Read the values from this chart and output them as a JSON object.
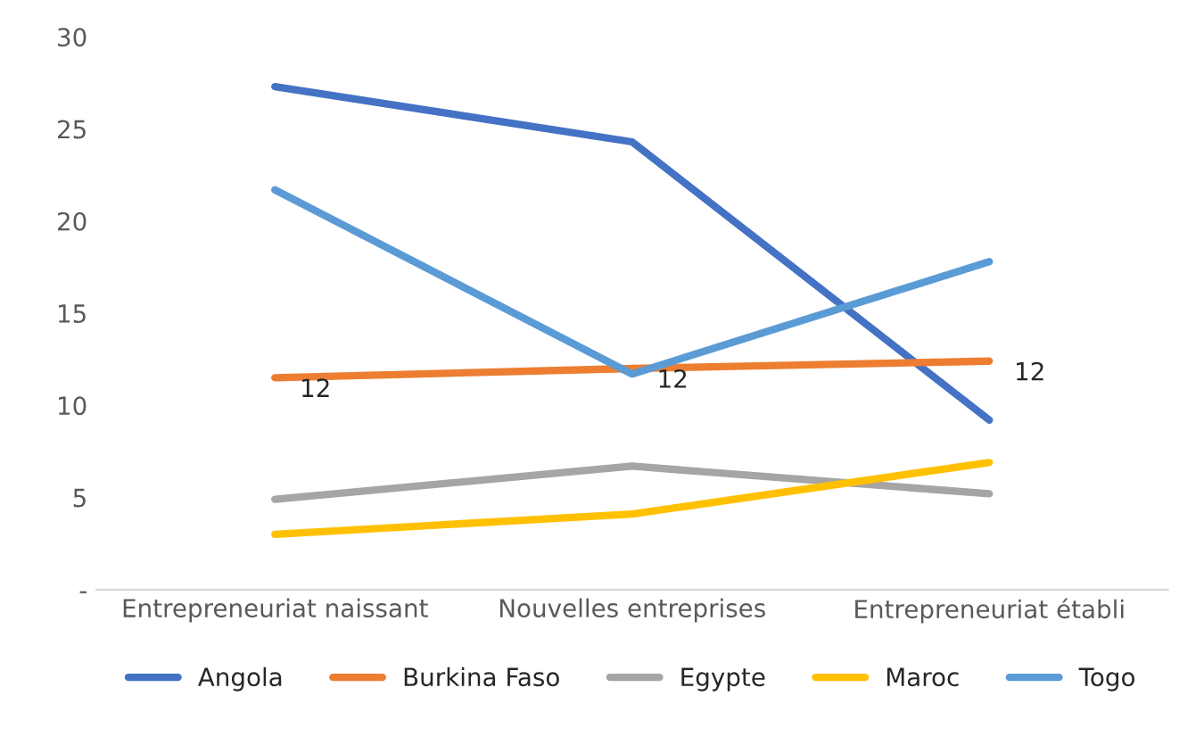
{
  "chart_data": {
    "type": "line",
    "categories": [
      "Entrepreneuriat naissant",
      "Nouvelles entreprises",
      "Entrepreneuriat établi"
    ],
    "series": [
      {
        "name": "Angola",
        "color": "#4472c4",
        "values": [
          27.3,
          24.3,
          9.2
        ]
      },
      {
        "name": "Burkina Faso",
        "color": "#ed7d31",
        "values": [
          11.5,
          12.0,
          12.4
        ],
        "value_labels": [
          "12",
          "12",
          "12"
        ]
      },
      {
        "name": "Egypte",
        "color": "#a5a5a5",
        "values": [
          4.9,
          6.7,
          5.2
        ]
      },
      {
        "name": "Maroc",
        "color": "#ffc000",
        "values": [
          3.0,
          4.1,
          6.9
        ]
      },
      {
        "name": "Togo",
        "color": "#5b9bd5",
        "values": [
          21.7,
          11.7,
          17.8
        ]
      }
    ],
    "ylim": [
      0,
      30
    ],
    "yticks": [
      {
        "value": 0,
        "label": "-"
      },
      5,
      10,
      15,
      20,
      25,
      30
    ],
    "grid": false,
    "legend": "bottom",
    "marker": "none",
    "line_style": "solid"
  }
}
